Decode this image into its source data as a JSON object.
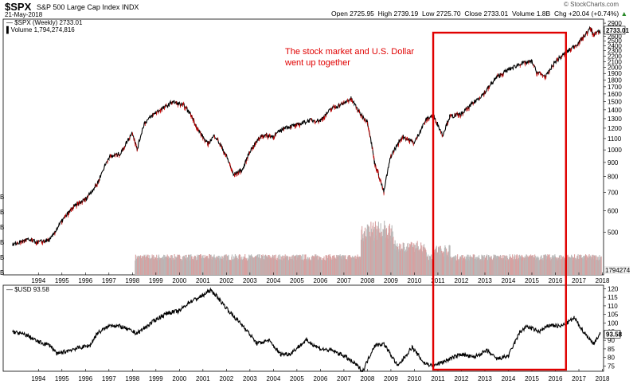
{
  "header": {
    "symbol": "$SPX",
    "name": "S&P 500 Large Cap Index",
    "exchange": "INDX",
    "date": "21-May-2018",
    "open_label": "Open",
    "open": "2725.95",
    "high_label": "High",
    "high": "2739.19",
    "low_label": "Low",
    "low": "2725.70",
    "close_label": "Close",
    "close": "2733.01",
    "volume_label": "Volume",
    "volume": "1.8B",
    "chg_label": "Chg",
    "chg": "+20.04 (+0.74%)",
    "chg_icon": "up-triangle-icon",
    "watermark": "© StockCharts.com"
  },
  "colors": {
    "annotation": "#e00000",
    "volume": "#c8b0b0",
    "line": "#000000",
    "up": "#000000",
    "down": "#cc0000"
  },
  "chart_data": [
    {
      "type": "line",
      "title": "$SPX (Weekly) 2733.01",
      "series_name": "$SPX (Weekly)",
      "last_value": "2733.01",
      "scale": "log",
      "ylim": [
        350,
        3000
      ],
      "yticks": [
        500,
        600,
        700,
        800,
        900,
        1000,
        1100,
        1200,
        1300,
        1400,
        1500,
        1600,
        1700,
        1800,
        1900,
        2000,
        2100,
        2200,
        2300,
        2400,
        2500,
        2600,
        2700,
        2800,
        2900
      ],
      "xtick_labels": [
        "1994",
        "1995",
        "1996",
        "1997",
        "1998",
        "1999",
        "2000",
        "2001",
        "2002",
        "2003",
        "2004",
        "2005",
        "2006",
        "2007",
        "2008",
        "2009",
        "2010",
        "2011",
        "2012",
        "2013",
        "2014",
        "2015",
        "2016",
        "2017",
        "2018"
      ],
      "x": [
        1993.4,
        1994.0,
        1994.5,
        1995.0,
        1995.5,
        1996.0,
        1996.5,
        1997.0,
        1997.5,
        1998.0,
        1998.5,
        1998.7,
        1999.0,
        1999.5,
        2000.0,
        2000.2,
        2000.7,
        2001.0,
        2001.3,
        2001.7,
        2002.0,
        2002.5,
        2002.8,
        2003.2,
        2003.5,
        2004.0,
        2004.5,
        2005.0,
        2005.5,
        2006.0,
        2006.5,
        2007.0,
        2007.5,
        2007.8,
        2008.2,
        2008.5,
        2008.8,
        2009.2,
        2009.5,
        2010.0,
        2010.5,
        2011.0,
        2011.3,
        2011.7,
        2012.0,
        2012.5,
        2013.0,
        2013.5,
        2014.0,
        2014.5,
        2015.0,
        2015.5,
        2015.7,
        2016.1,
        2016.5,
        2017.0,
        2017.5,
        2018.0,
        2018.1,
        2018.4
      ],
      "values": [
        450,
        470,
        460,
        470,
        550,
        620,
        660,
        750,
        940,
        970,
        1160,
        1000,
        1250,
        1370,
        1450,
        1500,
        1450,
        1340,
        1180,
        1050,
        1130,
        950,
        810,
        850,
        990,
        1130,
        1120,
        1210,
        1230,
        1280,
        1280,
        1420,
        1480,
        1540,
        1350,
        1270,
        900,
        700,
        950,
        1120,
        1060,
        1290,
        1340,
        1130,
        1320,
        1350,
        1480,
        1620,
        1840,
        1960,
        2060,
        2100,
        1920,
        1850,
        2100,
        2280,
        2460,
        2780,
        2640,
        2700
      ],
      "volume_label": "Volume 1,794,274,816",
      "volume_last": "1794274",
      "volume_start": 1998.6,
      "annotation": "The stock market and U.S. Dollar went up together",
      "highlight_range": [
        2011.3,
        2016.95
      ]
    },
    {
      "type": "line",
      "title": "$USD 93.58",
      "series_name": "$USD",
      "last_value": "93.58",
      "ylim": [
        72,
        122
      ],
      "yticks": [
        75,
        80,
        85,
        90,
        95,
        100,
        105,
        110,
        115,
        120
      ],
      "xtick_labels": [
        "1994",
        "1995",
        "1996",
        "1997",
        "1998",
        "1999",
        "2000",
        "2001",
        "2002",
        "2003",
        "2004",
        "2005",
        "2006",
        "2007",
        "2008",
        "2009",
        "2010",
        "2011",
        "2012",
        "2013",
        "2014",
        "2015",
        "2016",
        "2017",
        "2018"
      ],
      "x": [
        1993.4,
        1994.0,
        1994.5,
        1995.0,
        1995.3,
        1996.0,
        1996.7,
        1997.0,
        1997.6,
        1998.0,
        1998.7,
        1999.0,
        1999.5,
        2000.0,
        2000.5,
        2000.9,
        2001.5,
        2001.8,
        2002.0,
        2002.3,
        2002.8,
        2003.3,
        2003.8,
        2004.3,
        2004.8,
        2005.2,
        2005.9,
        2006.5,
        2007.0,
        2007.5,
        2008.0,
        2008.3,
        2008.8,
        2009.2,
        2009.8,
        2010.4,
        2010.9,
        2011.3,
        2011.8,
        2012.5,
        2013.0,
        2013.6,
        2014.0,
        2014.5,
        2015.0,
        2015.3,
        2015.8,
        2016.3,
        2016.7,
        2017.0,
        2017.3,
        2017.7,
        2018.0,
        2018.1,
        2018.4
      ],
      "values": [
        95,
        93,
        89,
        87,
        82,
        85,
        87,
        94,
        99,
        98,
        94,
        97,
        102,
        106,
        107,
        112,
        116,
        119,
        117,
        112,
        104,
        97,
        88,
        90,
        82,
        82,
        90,
        85,
        84,
        81,
        76,
        72,
        87,
        88,
        75,
        86,
        77,
        75,
        78,
        82,
        80,
        84,
        79,
        81,
        95,
        98,
        95,
        99,
        98,
        100,
        103,
        95,
        90,
        88,
        93.58
      ]
    }
  ]
}
